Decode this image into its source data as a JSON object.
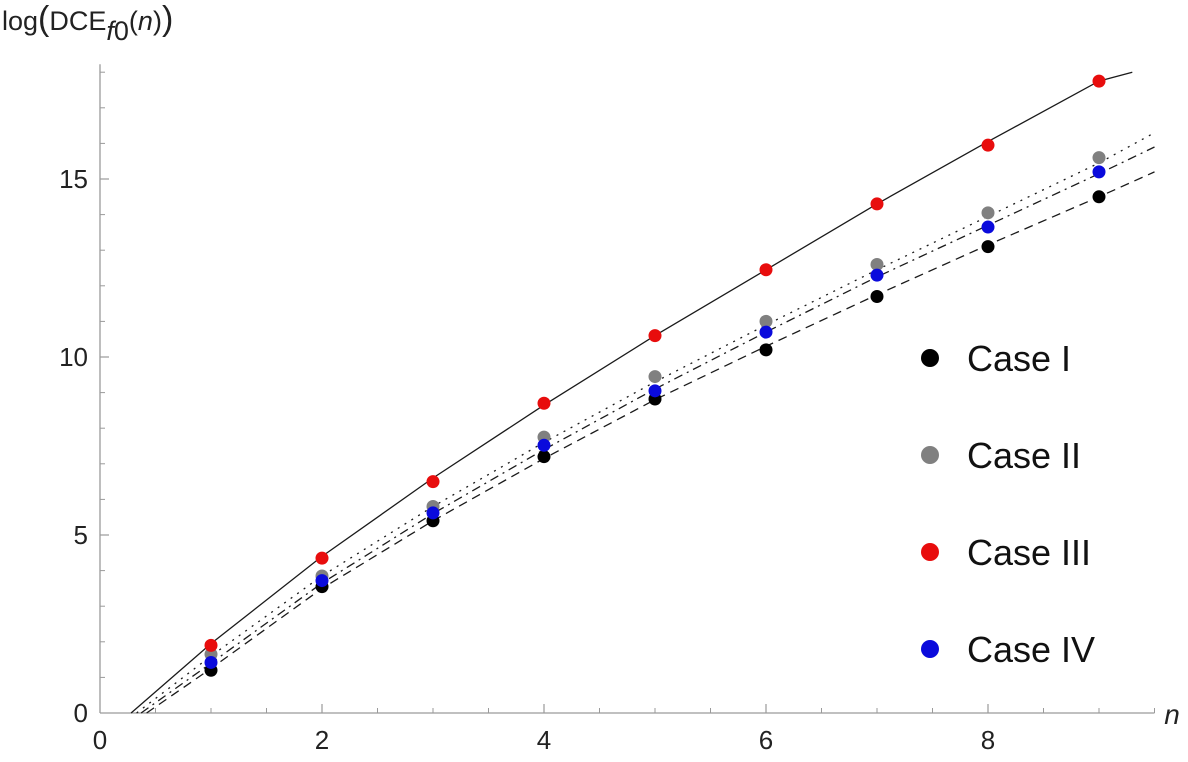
{
  "chart_data": {
    "type": "scatter",
    "xlabel": "n",
    "ylabel": {
      "prefix": "log",
      "main": "DCE",
      "subscript_italic": "f",
      "subscript_digit": "0",
      "arg": "n"
    },
    "xlim": [
      0,
      9.5
    ],
    "ylim": [
      0,
      18
    ],
    "x_ticks": [
      0,
      2,
      4,
      6,
      8
    ],
    "y_ticks": [
      0,
      5,
      10,
      15
    ],
    "grid": false,
    "legend_position": "right",
    "series": [
      {
        "name": "Case I",
        "color": "#000000",
        "line_style": "dashed",
        "x": [
          1,
          2,
          3,
          4,
          5,
          6,
          7,
          8,
          9
        ],
        "y": [
          1.2,
          3.55,
          5.4,
          7.2,
          8.82,
          10.2,
          11.7,
          13.1,
          14.5
        ],
        "fit_curve": {
          "x": [
            0.42,
            1,
            2,
            3,
            4,
            5,
            6,
            7,
            8,
            9,
            9.5
          ],
          "y": [
            0.0,
            1.25,
            3.5,
            5.4,
            7.15,
            8.8,
            10.3,
            11.75,
            13.15,
            14.5,
            15.2
          ]
        }
      },
      {
        "name": "Case II",
        "color": "#808080",
        "line_style": "dotted",
        "x": [
          1,
          2,
          3,
          4,
          5,
          6,
          7,
          8,
          9
        ],
        "y": [
          1.65,
          3.85,
          5.8,
          7.75,
          9.45,
          11.0,
          12.6,
          14.05,
          15.6
        ],
        "fit_curve": {
          "x": [
            0.33,
            1,
            2,
            3,
            4,
            5,
            6,
            7,
            8,
            9,
            9.5
          ],
          "y": [
            0.0,
            1.6,
            3.85,
            5.8,
            7.6,
            9.3,
            10.9,
            12.45,
            13.95,
            15.45,
            16.3
          ]
        }
      },
      {
        "name": "Case III",
        "color": "#e80d0d",
        "line_style": "solid",
        "x": [
          1,
          2,
          3,
          4,
          5,
          6,
          7,
          8,
          9
        ],
        "y": [
          1.9,
          4.35,
          6.5,
          8.7,
          10.6,
          12.45,
          14.3,
          15.95,
          17.75
        ],
        "fit_curve": {
          "x": [
            0.28,
            1,
            2,
            3,
            4,
            5,
            6,
            7,
            8,
            9,
            9.3
          ],
          "y": [
            0.0,
            1.95,
            4.4,
            6.6,
            8.65,
            10.6,
            12.45,
            14.3,
            16.05,
            17.75,
            18.0
          ]
        }
      },
      {
        "name": "Case IV",
        "color": "#0a0adc",
        "line_style": "dash-dot",
        "x": [
          1,
          2,
          3,
          4,
          5,
          6,
          7,
          8,
          9
        ],
        "y": [
          1.42,
          3.72,
          5.62,
          7.52,
          9.05,
          10.7,
          12.3,
          13.65,
          15.2
        ],
        "fit_curve": {
          "x": [
            0.37,
            1,
            2,
            3,
            4,
            5,
            6,
            7,
            8,
            9,
            9.5
          ],
          "y": [
            0.0,
            1.4,
            3.65,
            5.6,
            7.4,
            9.1,
            10.7,
            12.25,
            13.7,
            15.15,
            15.9
          ]
        }
      }
    ]
  }
}
